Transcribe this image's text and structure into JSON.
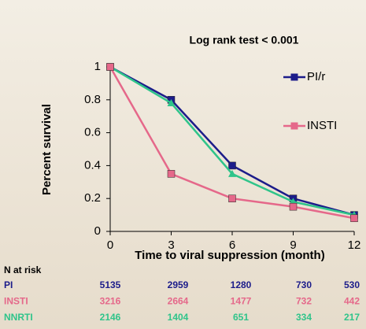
{
  "chart_data": {
    "type": "line",
    "title": "Log rank test < 0.001",
    "x_label": "Time to viral suppression (month)",
    "y_label": "Percent survival",
    "x": [
      0,
      3,
      6,
      9,
      12
    ],
    "xlim": [
      0,
      12
    ],
    "xticks": [
      0,
      3,
      6,
      9,
      12
    ],
    "ylim": [
      0,
      1
    ],
    "yticks": [
      0,
      0.2,
      0.4,
      0.6,
      0.8,
      1
    ],
    "series": [
      {
        "name": "PI/r",
        "color": "#1c1c8a",
        "marker": "square",
        "values": [
          1,
          0.8,
          0.4,
          0.2,
          0.1
        ]
      },
      {
        "color": "#2fc48a",
        "marker": "triangle",
        "values": [
          1,
          0.78,
          0.35,
          0.18,
          0.1
        ]
      },
      {
        "name": "INSTI",
        "color": "#e5688a",
        "marker": "square",
        "values": [
          1,
          0.35,
          0.2,
          0.15,
          0.08
        ]
      }
    ],
    "risk_table": {
      "title": "N at risk",
      "rows": [
        {
          "label": "PI",
          "color": "#1c1c8a",
          "values": [
            5135,
            2959,
            1280,
            730,
            530
          ]
        },
        {
          "label": "INSTI",
          "color": "#e5688a",
          "values": [
            3216,
            2664,
            1477,
            732,
            442
          ]
        },
        {
          "label": "NNRTI",
          "color": "#2fc48a",
          "values": [
            2146,
            1404,
            651,
            334,
            217
          ]
        }
      ]
    }
  }
}
